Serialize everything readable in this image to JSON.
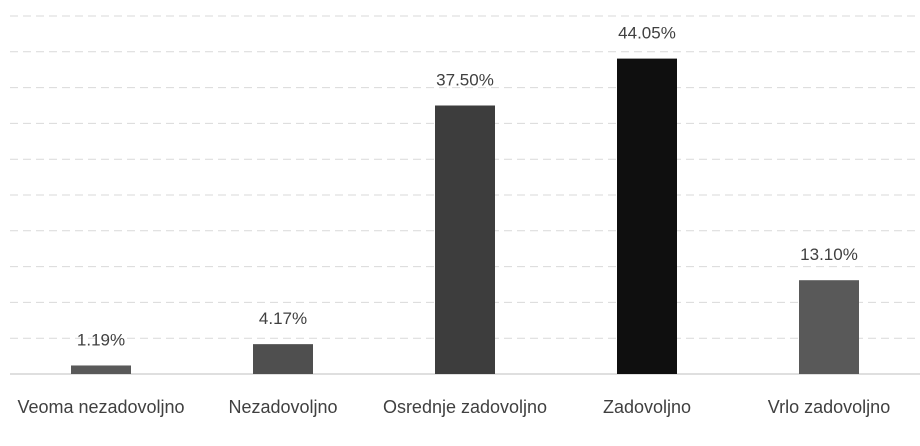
{
  "chart_data": {
    "type": "bar",
    "categories": [
      "Veoma nezadovoljno",
      "Nezadovoljno",
      "Osrednje zadovoljno",
      "Zadovoljno",
      "Vrlo zadovoljno"
    ],
    "values": [
      1.19,
      4.17,
      37.5,
      44.05,
      13.1
    ],
    "value_labels": [
      "1.19%",
      "4.17%",
      "37.50%",
      "44.05%",
      "13.10%"
    ],
    "colors": [
      "#595959",
      "#4f4f4f",
      "#3d3d3d",
      "#0f0f0f",
      "#595959"
    ],
    "ylim": [
      0,
      50
    ],
    "yticks": [
      0,
      5,
      10,
      15,
      20,
      25,
      30,
      35,
      40,
      45,
      50
    ],
    "grid": true
  }
}
